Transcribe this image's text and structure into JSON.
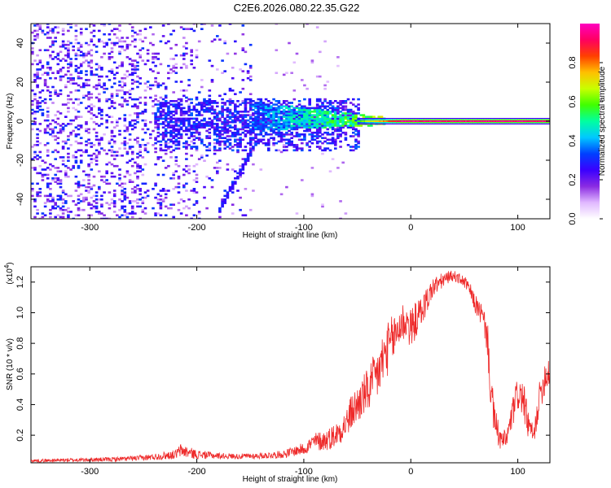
{
  "title": "C2E6.2026.080.22.35.G22",
  "chart_data": [
    {
      "type": "heatmap",
      "title": "C2E6.2026.080.22.35.G22",
      "xlabel": "Height of straight line (km)",
      "ylabel": "Frequency (Hz)",
      "xlim": [
        -355,
        130
      ],
      "ylim": [
        -50,
        50
      ],
      "xticks": [
        -300,
        -200,
        -100,
        0,
        100
      ],
      "yticks": [
        -40,
        -20,
        0,
        20,
        40
      ],
      "colorbar": {
        "label": "Normalized spectral amplitude",
        "range": [
          0,
          1
        ],
        "ticks": [
          0.0,
          0.2,
          0.4,
          0.6,
          0.8
        ],
        "tick_labels": [
          "0.0",
          "0.2",
          "0.4",
          "0.6",
          "0.8"
        ],
        "colors": [
          "#ffffff",
          "#e0b8ff",
          "#8a2be2",
          "#3a00ff",
          "#0040ff",
          "#00c8ff",
          "#00ffa0",
          "#40ff00",
          "#c8ff00",
          "#ffc000",
          "#ff4000",
          "#ff0060",
          "#ff00c0"
        ]
      },
      "features": {
        "noise_scatter_region_km": [
          -355,
          -150
        ],
        "noise_scatter_amplitude": 0.25,
        "spread_band_km": [
          -240,
          -50
        ],
        "spread_band_freq_hz": [
          -15,
          12
        ],
        "converging_band_km": [
          -150,
          -25
        ],
        "converging_band_freq_start_hz": [
          -5,
          10
        ],
        "tone_line_km": [
          -50,
          130
        ],
        "tone_line_freq_hz": 0,
        "tone_line_peak_amplitude": 0.95,
        "chirp_track_km": [
          -180,
          -150
        ],
        "chirp_track_freq_hz": [
          -45,
          -15
        ]
      }
    },
    {
      "type": "line",
      "title": "",
      "xlabel": "Height of straight line (km)",
      "ylabel": "SNR (10 * v/v)",
      "multiplier": "(x10^4)",
      "multiplier_base": "(x10",
      "multiplier_exp": "4",
      "multiplier_close": ")",
      "xlim": [
        -355,
        130
      ],
      "ylim": [
        0.02,
        1.3
      ],
      "xticks": [
        -300,
        -200,
        -100,
        0,
        100
      ],
      "yticks": [
        0.2,
        0.4,
        0.6,
        0.8,
        1.0,
        1.2
      ],
      "ytick_labels": [
        "0.2",
        "0.4",
        "0.6",
        "0.8",
        "1.0",
        "1.2"
      ],
      "series": [
        {
          "name": "SNR",
          "color": "#ee2a2a",
          "x": [
            -355,
            -320,
            -280,
            -250,
            -220,
            -215,
            -200,
            -180,
            -160,
            -140,
            -120,
            -100,
            -90,
            -80,
            -70,
            -60,
            -55,
            -50,
            -45,
            -40,
            -35,
            -30,
            -25,
            -20,
            -15,
            -10,
            -5,
            0,
            5,
            10,
            15,
            20,
            25,
            30,
            35,
            40,
            45,
            50,
            55,
            60,
            65,
            70,
            72,
            75,
            78,
            80,
            83,
            85,
            90,
            95,
            100,
            105,
            110,
            115,
            120,
            125,
            130
          ],
          "values": [
            0.035,
            0.04,
            0.045,
            0.055,
            0.08,
            0.11,
            0.08,
            0.07,
            0.065,
            0.07,
            0.08,
            0.12,
            0.17,
            0.18,
            0.22,
            0.3,
            0.38,
            0.42,
            0.48,
            0.52,
            0.58,
            0.65,
            0.75,
            0.82,
            0.88,
            0.95,
            0.98,
            0.92,
            0.98,
            1.03,
            1.1,
            1.17,
            1.2,
            1.22,
            1.24,
            1.25,
            1.23,
            1.21,
            1.16,
            1.07,
            1.02,
            0.92,
            0.82,
            0.5,
            0.32,
            0.27,
            0.2,
            0.17,
            0.2,
            0.36,
            0.5,
            0.46,
            0.28,
            0.2,
            0.46,
            0.6,
            0.66
          ],
          "noise_amplitude": [
            0.01,
            0.012,
            0.014,
            0.018,
            0.03,
            0.045,
            0.03,
            0.02,
            0.018,
            0.02,
            0.025,
            0.04,
            0.06,
            0.07,
            0.08,
            0.1,
            0.12,
            0.13,
            0.14,
            0.15,
            0.17,
            0.18,
            0.18,
            0.17,
            0.16,
            0.15,
            0.14,
            0.13,
            0.12,
            0.1,
            0.09,
            0.07,
            0.06,
            0.05,
            0.04,
            0.035,
            0.035,
            0.04,
            0.05,
            0.06,
            0.08,
            0.1,
            0.12,
            0.14,
            0.12,
            0.1,
            0.08,
            0.06,
            0.07,
            0.1,
            0.12,
            0.12,
            0.1,
            0.06,
            0.1,
            0.12,
            0.12
          ]
        }
      ]
    }
  ]
}
